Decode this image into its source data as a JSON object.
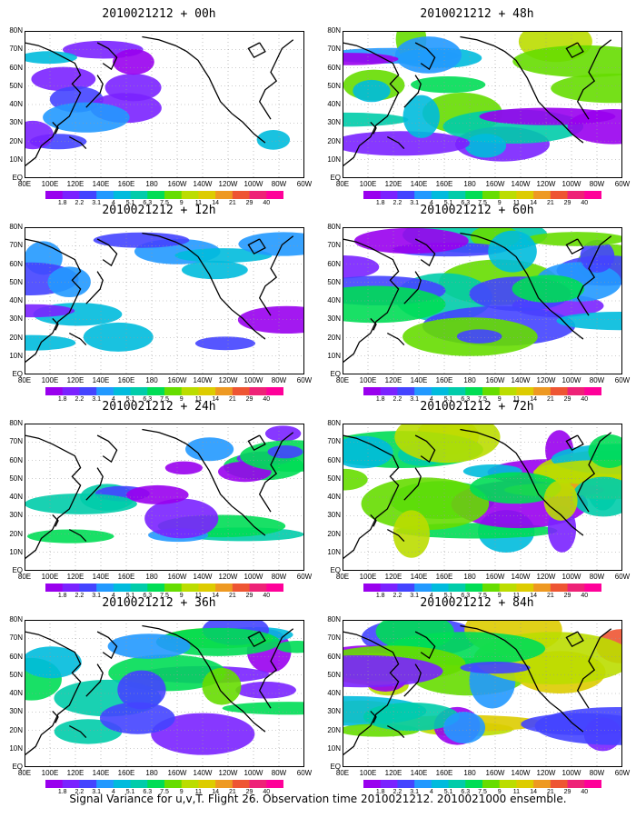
{
  "panels": [
    {
      "title": "2010021212 + 00h",
      "intensity": 0.15
    },
    {
      "title": "2010021212 + 48h",
      "intensity": 0.55
    },
    {
      "title": "2010021212 + 12h",
      "intensity": 0.25
    },
    {
      "title": "2010021212 + 60h",
      "intensity": 0.65
    },
    {
      "title": "2010021212 + 24h",
      "intensity": 0.4
    },
    {
      "title": "2010021212 + 72h",
      "intensity": 0.75
    },
    {
      "title": "2010021212 + 36h",
      "intensity": 0.5
    },
    {
      "title": "2010021212 + 84h",
      "intensity": 0.85
    }
  ],
  "lat_labels": [
    "80N",
    "70N",
    "60N",
    "50N",
    "40N",
    "30N",
    "20N",
    "10N",
    "EQ"
  ],
  "lon_labels": [
    "80E",
    "100E",
    "120E",
    "140E",
    "160E",
    "180",
    "160W",
    "140W",
    "120W",
    "100W",
    "80W",
    "60W"
  ],
  "colorbar": {
    "labels": [
      "1.8",
      "2.2",
      "3.1",
      "4",
      "5.1",
      "6.3",
      "7.5",
      "9",
      "11",
      "14",
      "21",
      "29",
      "40"
    ],
    "colors": [
      "#9900ee",
      "#7a22ff",
      "#4444ff",
      "#2299ff",
      "#00bbdd",
      "#00ccaa",
      "#00dd55",
      "#66dd00",
      "#bbdd00",
      "#ddcc00",
      "#ee9922",
      "#ee5533",
      "#ee2277",
      "#ff0099"
    ]
  },
  "caption": "Signal Variance for u,v,T. Flight 26. Observation time 2010021212. 2010021000 ensemble."
}
